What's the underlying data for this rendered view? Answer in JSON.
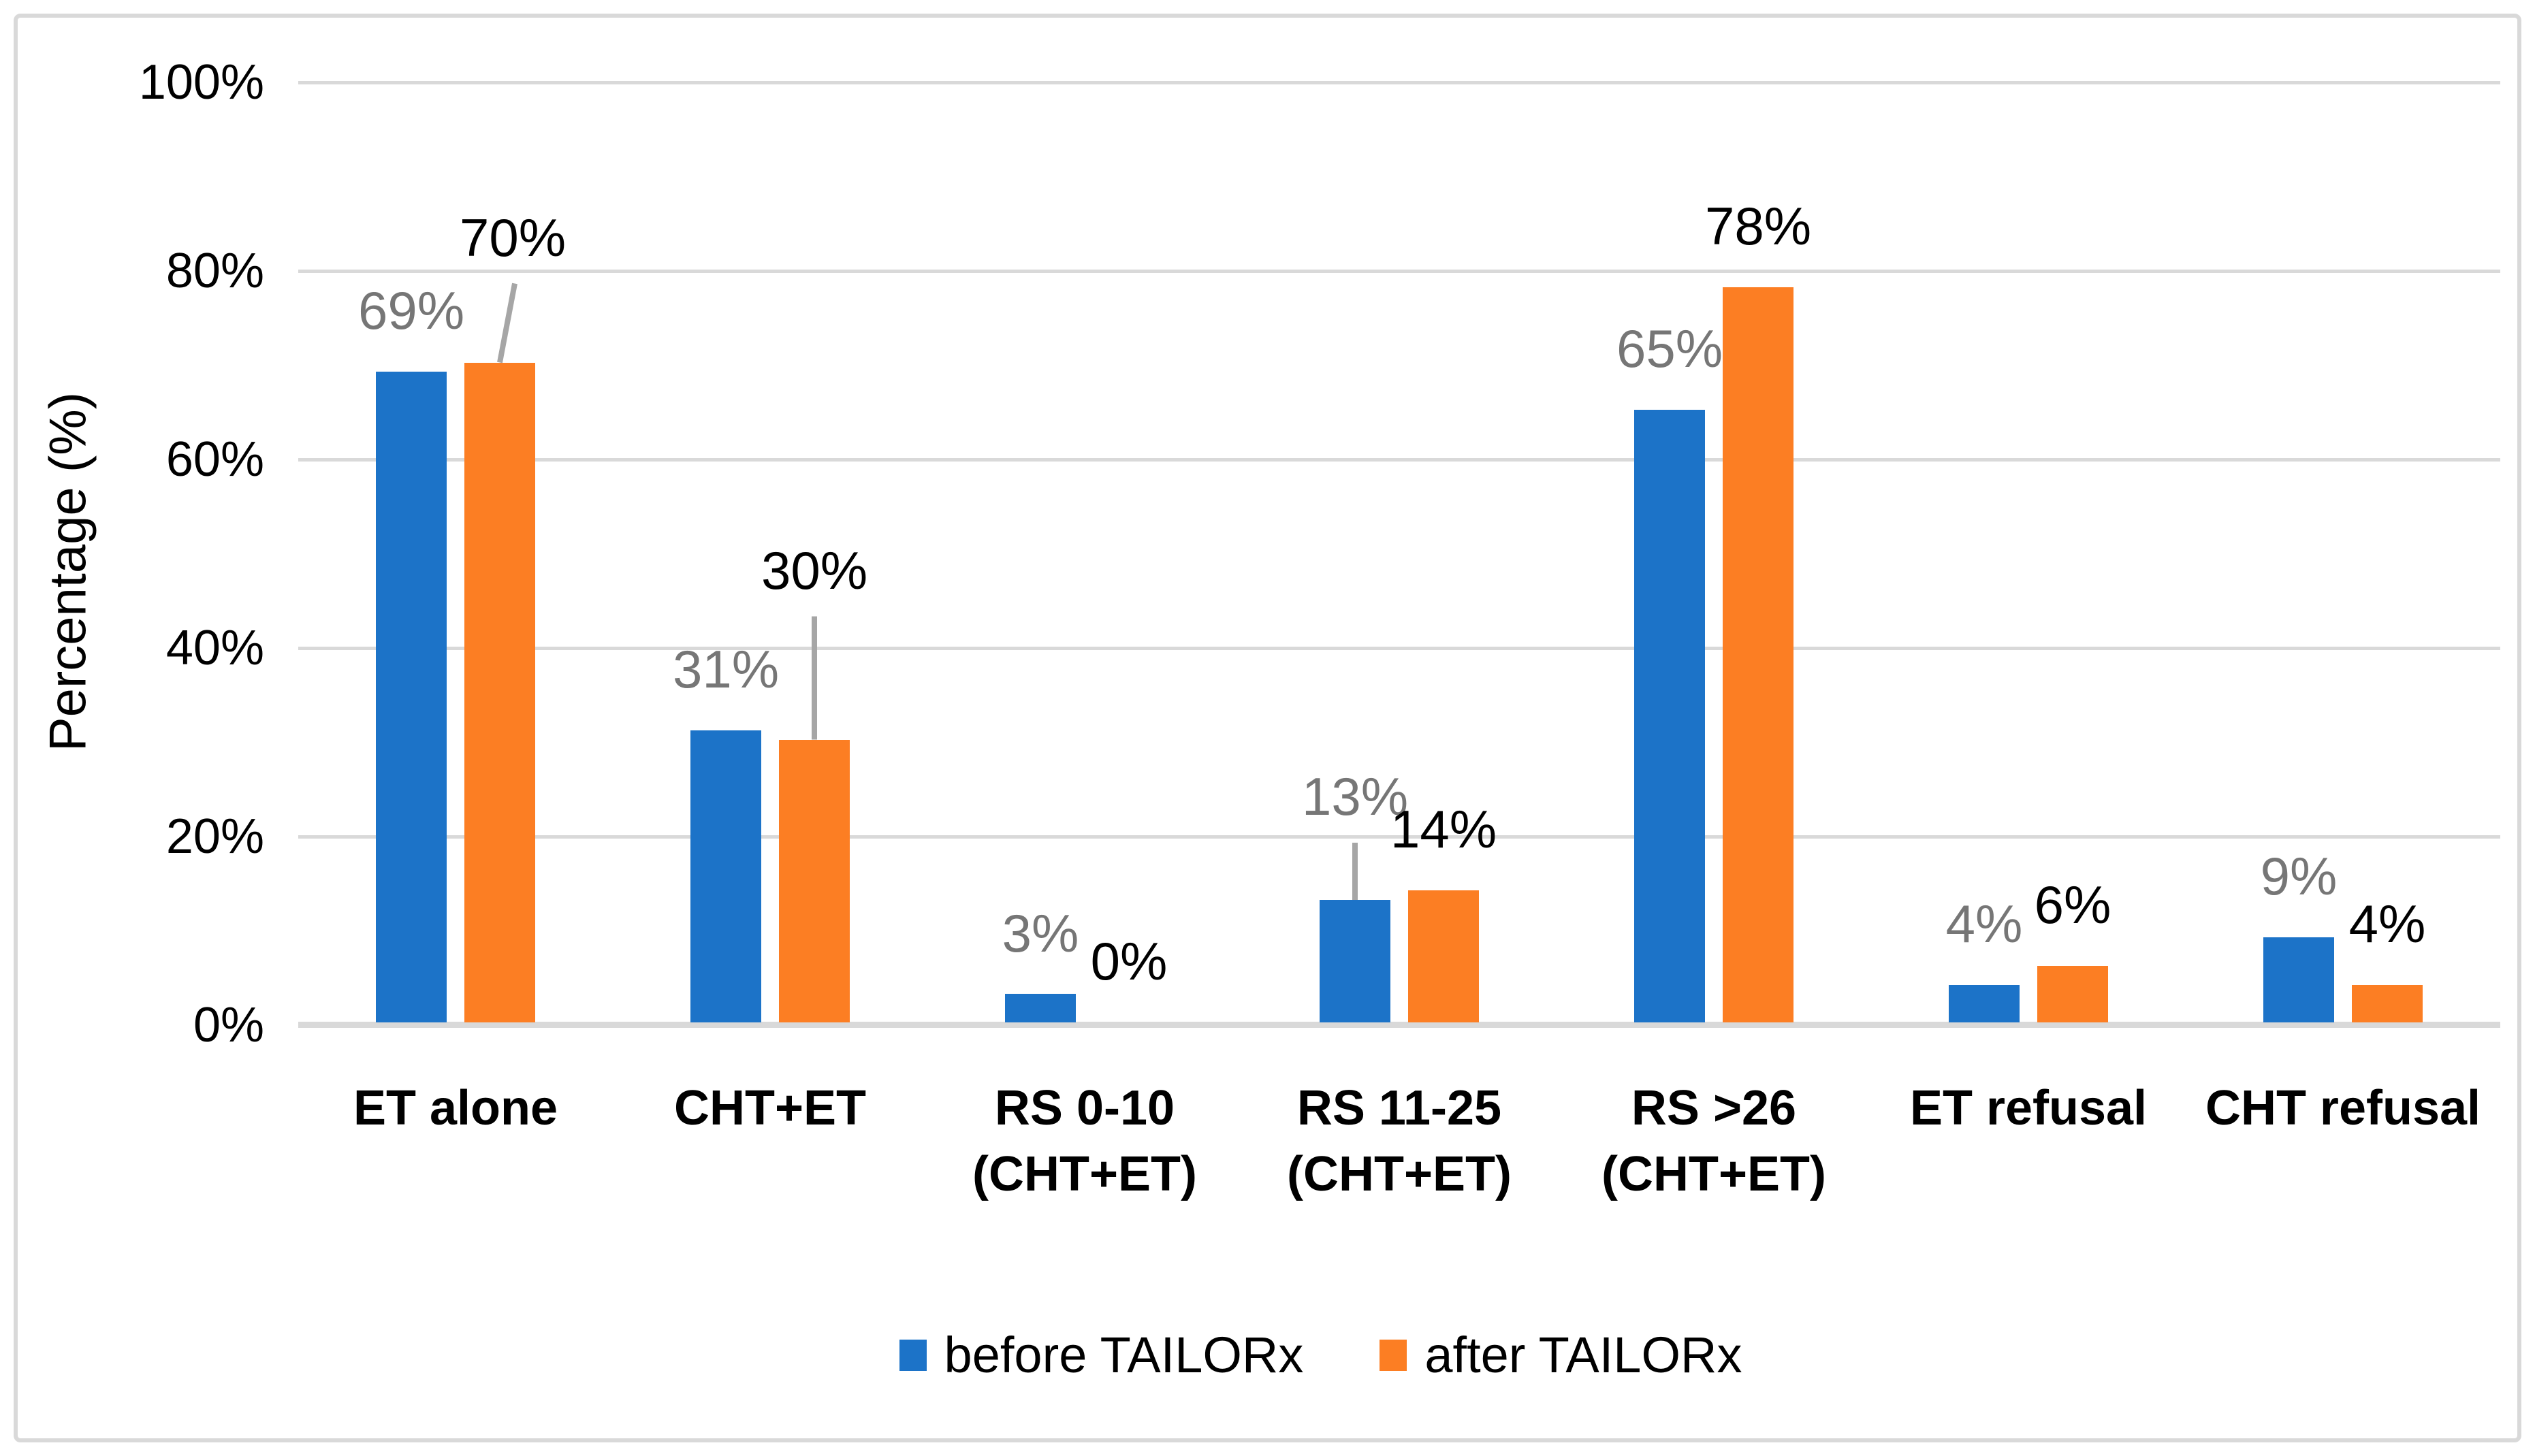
{
  "frame": {
    "border_color": "#D9D9D9",
    "background": "#FFFFFF"
  },
  "chart_data": {
    "type": "bar",
    "title": "",
    "ylabel": "Percentage (%)",
    "ylim": [
      0,
      100
    ],
    "grid": true,
    "legend_position": "bottom",
    "yticks": [
      "0%",
      "20%",
      "40%",
      "60%",
      "80%",
      "100%"
    ],
    "ytick_values": [
      0,
      20,
      40,
      60,
      80,
      100
    ],
    "categories": [
      "ET alone",
      "CHT+ET",
      "RS 0-10 (CHT+ET)",
      "RS 11-25 (CHT+ET)",
      "RS >26 (CHT+ET)",
      "ET refusal",
      "CHT refusal"
    ],
    "category_lines": [
      [
        "ET alone"
      ],
      [
        "CHT+ET"
      ],
      [
        "RS 0-10",
        "(CHT+ET)"
      ],
      [
        "RS 11-25",
        "(CHT+ET)"
      ],
      [
        "RS >26",
        "(CHT+ET)"
      ],
      [
        "ET refusal"
      ],
      [
        "CHT refusal"
      ]
    ],
    "series": [
      {
        "name": "before TAILORx",
        "color": "#1C73C8",
        "label_color": "#767676",
        "values": [
          69,
          31,
          3,
          13,
          65,
          4,
          9
        ],
        "labels": [
          "69%",
          "31%",
          "3%",
          "13%",
          "65%",
          "4%",
          "9%"
        ]
      },
      {
        "name": "after TAILORx",
        "color": "#FC7E23",
        "label_color": "#000000",
        "values": [
          70,
          30,
          0,
          14,
          78,
          6,
          4
        ],
        "labels": [
          "70%",
          "30%",
          "0%",
          "14%",
          "78%",
          "6%",
          "4%"
        ]
      }
    ],
    "callouts": [
      {
        "series": 1,
        "index": 0,
        "lift": 94,
        "dx": 19,
        "leader": true,
        "leader_dx": 22
      },
      {
        "series": 1,
        "index": 1,
        "lift": 159,
        "dx": 0,
        "leader": true,
        "leader_dx": 0
      },
      {
        "series": 0,
        "index": 3,
        "lift": 62,
        "dx": 0,
        "leader": true,
        "leader_dx": 0
      }
    ],
    "colors": {
      "grid": "#D9D9D9",
      "axis": "#D9D9D9",
      "leader": "#A6A6A6"
    }
  }
}
